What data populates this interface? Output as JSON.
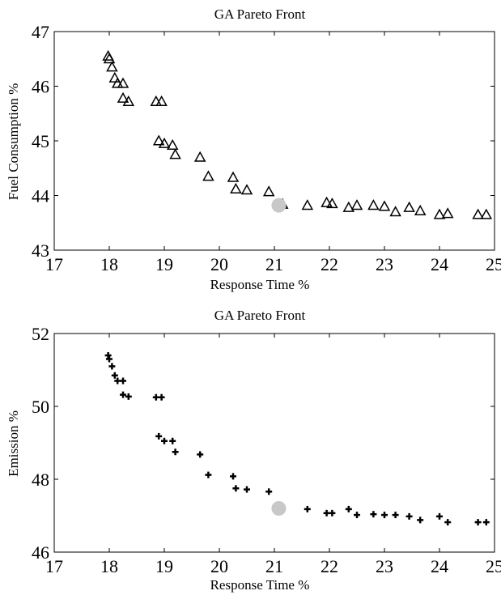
{
  "chart_data": [
    {
      "type": "scatter",
      "title": "GA Pareto Front",
      "xlabel": "Response Time %",
      "ylabel": "Fuel Consumption %",
      "xlim": [
        17,
        25
      ],
      "ylim": [
        43,
        47
      ],
      "xticks": [
        "17",
        "18",
        "19",
        "20",
        "21",
        "22",
        "23",
        "24",
        "25"
      ],
      "yticks": [
        "43",
        "44",
        "45",
        "46",
        "47"
      ],
      "marker": "triangle-open",
      "highlight": {
        "x": 21.08,
        "y": 43.82,
        "color": "#c8c8c8"
      },
      "points": [
        {
          "x": 17.98,
          "y": 46.55
        },
        {
          "x": 18.0,
          "y": 46.5
        },
        {
          "x": 18.05,
          "y": 46.35
        },
        {
          "x": 18.1,
          "y": 46.15
        },
        {
          "x": 18.15,
          "y": 46.05
        },
        {
          "x": 18.25,
          "y": 46.05
        },
        {
          "x": 18.25,
          "y": 45.78
        },
        {
          "x": 18.35,
          "y": 45.72
        },
        {
          "x": 18.85,
          "y": 45.72
        },
        {
          "x": 18.95,
          "y": 45.72
        },
        {
          "x": 18.9,
          "y": 45.0
        },
        {
          "x": 19.0,
          "y": 44.95
        },
        {
          "x": 19.15,
          "y": 44.92
        },
        {
          "x": 19.2,
          "y": 44.75
        },
        {
          "x": 19.65,
          "y": 44.7
        },
        {
          "x": 19.8,
          "y": 44.35
        },
        {
          "x": 20.25,
          "y": 44.33
        },
        {
          "x": 20.3,
          "y": 44.12
        },
        {
          "x": 20.5,
          "y": 44.1
        },
        {
          "x": 20.9,
          "y": 44.07
        },
        {
          "x": 21.15,
          "y": 43.84
        },
        {
          "x": 21.6,
          "y": 43.82
        },
        {
          "x": 21.95,
          "y": 43.87
        },
        {
          "x": 22.05,
          "y": 43.85
        },
        {
          "x": 22.35,
          "y": 43.78
        },
        {
          "x": 22.5,
          "y": 43.82
        },
        {
          "x": 22.8,
          "y": 43.82
        },
        {
          "x": 23.0,
          "y": 43.8
        },
        {
          "x": 23.2,
          "y": 43.7
        },
        {
          "x": 23.45,
          "y": 43.78
        },
        {
          "x": 23.65,
          "y": 43.72
        },
        {
          "x": 24.0,
          "y": 43.65
        },
        {
          "x": 24.15,
          "y": 43.67
        },
        {
          "x": 24.7,
          "y": 43.65
        },
        {
          "x": 24.85,
          "y": 43.65
        }
      ]
    },
    {
      "type": "scatter",
      "title": "GA Pareto Front",
      "xlabel": "Response Time %",
      "ylabel": "Emission %",
      "xlim": [
        17,
        25
      ],
      "ylim": [
        46,
        52
      ],
      "xticks": [
        "17",
        "18",
        "19",
        "20",
        "21",
        "22",
        "23",
        "24",
        "25"
      ],
      "yticks": [
        "46",
        "48",
        "50",
        "52"
      ],
      "marker": "plus-bold",
      "highlight": {
        "x": 21.08,
        "y": 47.2,
        "color": "#c8c8c8"
      },
      "points": [
        {
          "x": 17.98,
          "y": 51.4
        },
        {
          "x": 18.0,
          "y": 51.3
        },
        {
          "x": 18.05,
          "y": 51.1
        },
        {
          "x": 18.1,
          "y": 50.85
        },
        {
          "x": 18.15,
          "y": 50.7
        },
        {
          "x": 18.25,
          "y": 50.7
        },
        {
          "x": 18.25,
          "y": 50.32
        },
        {
          "x": 18.35,
          "y": 50.27
        },
        {
          "x": 18.85,
          "y": 50.25
        },
        {
          "x": 18.95,
          "y": 50.25
        },
        {
          "x": 18.9,
          "y": 49.18
        },
        {
          "x": 19.0,
          "y": 49.05
        },
        {
          "x": 19.15,
          "y": 49.05
        },
        {
          "x": 19.2,
          "y": 48.75
        },
        {
          "x": 19.65,
          "y": 48.68
        },
        {
          "x": 19.8,
          "y": 48.12
        },
        {
          "x": 20.25,
          "y": 48.08
        },
        {
          "x": 20.3,
          "y": 47.75
        },
        {
          "x": 20.5,
          "y": 47.72
        },
        {
          "x": 20.9,
          "y": 47.66
        },
        {
          "x": 21.6,
          "y": 47.18
        },
        {
          "x": 21.95,
          "y": 47.07
        },
        {
          "x": 22.05,
          "y": 47.07
        },
        {
          "x": 22.35,
          "y": 47.18
        },
        {
          "x": 22.5,
          "y": 47.02
        },
        {
          "x": 22.8,
          "y": 47.04
        },
        {
          "x": 23.0,
          "y": 47.02
        },
        {
          "x": 23.2,
          "y": 47.02
        },
        {
          "x": 23.45,
          "y": 46.98
        },
        {
          "x": 23.65,
          "y": 46.88
        },
        {
          "x": 24.0,
          "y": 46.98
        },
        {
          "x": 24.15,
          "y": 46.82
        },
        {
          "x": 24.7,
          "y": 46.82
        },
        {
          "x": 24.85,
          "y": 46.82
        }
      ]
    }
  ]
}
